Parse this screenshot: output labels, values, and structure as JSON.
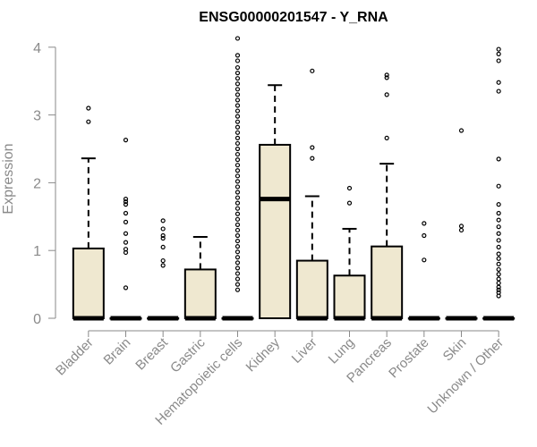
{
  "chart_data": {
    "type": "boxplot",
    "title": "ENSG00000201547 - Y_RNA",
    "ylabel": "Expression",
    "xlabel": "",
    "ylim": [
      0,
      4.2
    ],
    "yticks": [
      0,
      1,
      2,
      3,
      4
    ],
    "box_fill": "#efe8d0",
    "box_stroke": "#000000",
    "axis_color": "#8a8a8a",
    "categories": [
      "Bladder",
      "Brain",
      "Breast",
      "Gastric",
      "Hematopoietic cells",
      "Kidney",
      "Liver",
      "Lung",
      "Pancreas",
      "Prostate",
      "Skin",
      "Unknown / Other"
    ],
    "boxes": [
      {
        "name": "Bladder",
        "q1": 0,
        "median": 0,
        "q3": 1.03,
        "whisker_low": 0,
        "whisker_high": 2.36,
        "outliers": [
          2.9,
          3.1
        ]
      },
      {
        "name": "Brain",
        "q1": 0,
        "median": 0,
        "q3": 0,
        "whisker_low": 0,
        "whisker_high": 0,
        "outliers": [
          0.45,
          0.97,
          1.02,
          1.12,
          1.25,
          1.42,
          1.55,
          1.68,
          1.72,
          1.76,
          2.63
        ]
      },
      {
        "name": "Breast",
        "q1": 0,
        "median": 0,
        "q3": 0,
        "whisker_low": 0,
        "whisker_high": 0,
        "outliers": [
          0.78,
          0.85,
          1.05,
          1.18,
          1.22,
          1.32,
          1.44
        ]
      },
      {
        "name": "Gastric",
        "q1": 0,
        "median": 0,
        "q3": 0.72,
        "whisker_low": 0,
        "whisker_high": 1.2,
        "outliers": []
      },
      {
        "name": "Hematopoietic cells",
        "q1": 0,
        "median": 0,
        "q3": 0,
        "whisker_low": 0,
        "whisker_high": 0,
        "outliers": [
          0.42,
          0.5,
          0.58,
          0.66,
          0.74,
          0.82,
          0.9,
          0.98,
          1.06,
          1.14,
          1.22,
          1.3,
          1.38,
          1.46,
          1.54,
          1.62,
          1.7,
          1.78,
          1.86,
          1.94,
          2.02,
          2.1,
          2.18,
          2.26,
          2.34,
          2.42,
          2.5,
          2.58,
          2.66,
          2.74,
          2.82,
          2.9,
          2.98,
          3.06,
          3.14,
          3.22,
          3.3,
          3.38,
          3.46,
          3.54,
          3.62,
          3.7,
          3.8,
          3.88,
          4.13
        ]
      },
      {
        "name": "Kidney",
        "q1": 0,
        "median": 1.76,
        "q3": 2.56,
        "whisker_low": 0,
        "whisker_high": 3.44,
        "outliers": []
      },
      {
        "name": "Liver",
        "q1": 0,
        "median": 0,
        "q3": 0.85,
        "whisker_low": 0,
        "whisker_high": 1.8,
        "outliers": [
          2.36,
          2.52,
          3.65
        ]
      },
      {
        "name": "Lung",
        "q1": 0,
        "median": 0,
        "q3": 0.63,
        "whisker_low": 0,
        "whisker_high": 1.32,
        "outliers": [
          1.7,
          1.92
        ]
      },
      {
        "name": "Pancreas",
        "q1": 0,
        "median": 0,
        "q3": 1.06,
        "whisker_low": 0,
        "whisker_high": 2.28,
        "outliers": [
          2.66,
          3.3,
          3.55,
          3.59
        ]
      },
      {
        "name": "Prostate",
        "q1": 0,
        "median": 0,
        "q3": 0,
        "whisker_low": 0,
        "whisker_high": 0,
        "outliers": [
          0.86,
          1.22,
          1.4
        ]
      },
      {
        "name": "Skin",
        "q1": 0,
        "median": 0,
        "q3": 0,
        "whisker_low": 0,
        "whisker_high": 0,
        "outliers": [
          1.3,
          1.36,
          2.77
        ]
      },
      {
        "name": "Unknown / Other",
        "q1": 0,
        "median": 0,
        "q3": 0,
        "whisker_low": 0,
        "whisker_high": 0,
        "outliers": [
          0.33,
          0.38,
          0.42,
          0.46,
          0.52,
          0.58,
          0.65,
          0.72,
          0.8,
          0.88,
          0.95,
          1.05,
          1.15,
          1.25,
          1.35,
          1.45,
          1.55,
          1.68,
          1.95,
          2.35,
          3.35,
          3.48,
          3.8,
          3.9,
          3.97
        ]
      }
    ]
  }
}
